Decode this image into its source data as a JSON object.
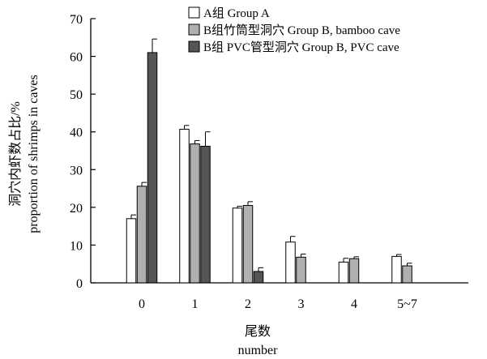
{
  "chart_data": {
    "type": "bar",
    "categories": [
      "0",
      "1",
      "2",
      "3",
      "4",
      "5~7"
    ],
    "series": [
      {
        "name": "A组 Group A",
        "values": [
          17,
          40.7,
          19.8,
          10.8,
          5.5,
          7
        ],
        "errors": [
          1,
          1,
          0.5,
          1.5,
          1,
          0.5
        ],
        "color": "#ffffff"
      },
      {
        "name": "B组竹筒型洞穴 Group B, bamboo cave",
        "values": [
          25.6,
          36.8,
          20.5,
          6.8,
          6.4,
          4.5
        ],
        "errors": [
          1,
          0.9,
          1,
          0.8,
          0.5,
          0.7
        ],
        "color": "#b0b0b0"
      },
      {
        "name": "B组 PVC管型洞穴 Group B, PVC cave",
        "values": [
          61,
          36.2,
          3,
          null,
          null,
          null
        ],
        "errors": [
          3.6,
          3.8,
          1
        ],
        "color": "#555555"
      }
    ],
    "xlabel": [
      "尾数",
      "number"
    ],
    "ylabel": [
      "洞穴内虾数占比/%",
      "proportion of shrimps in caves"
    ],
    "yticks": [
      0,
      10,
      20,
      30,
      40,
      50,
      60,
      70
    ],
    "ylim": [
      0,
      70
    ],
    "legend_position": "top-right",
    "grid": false
  }
}
